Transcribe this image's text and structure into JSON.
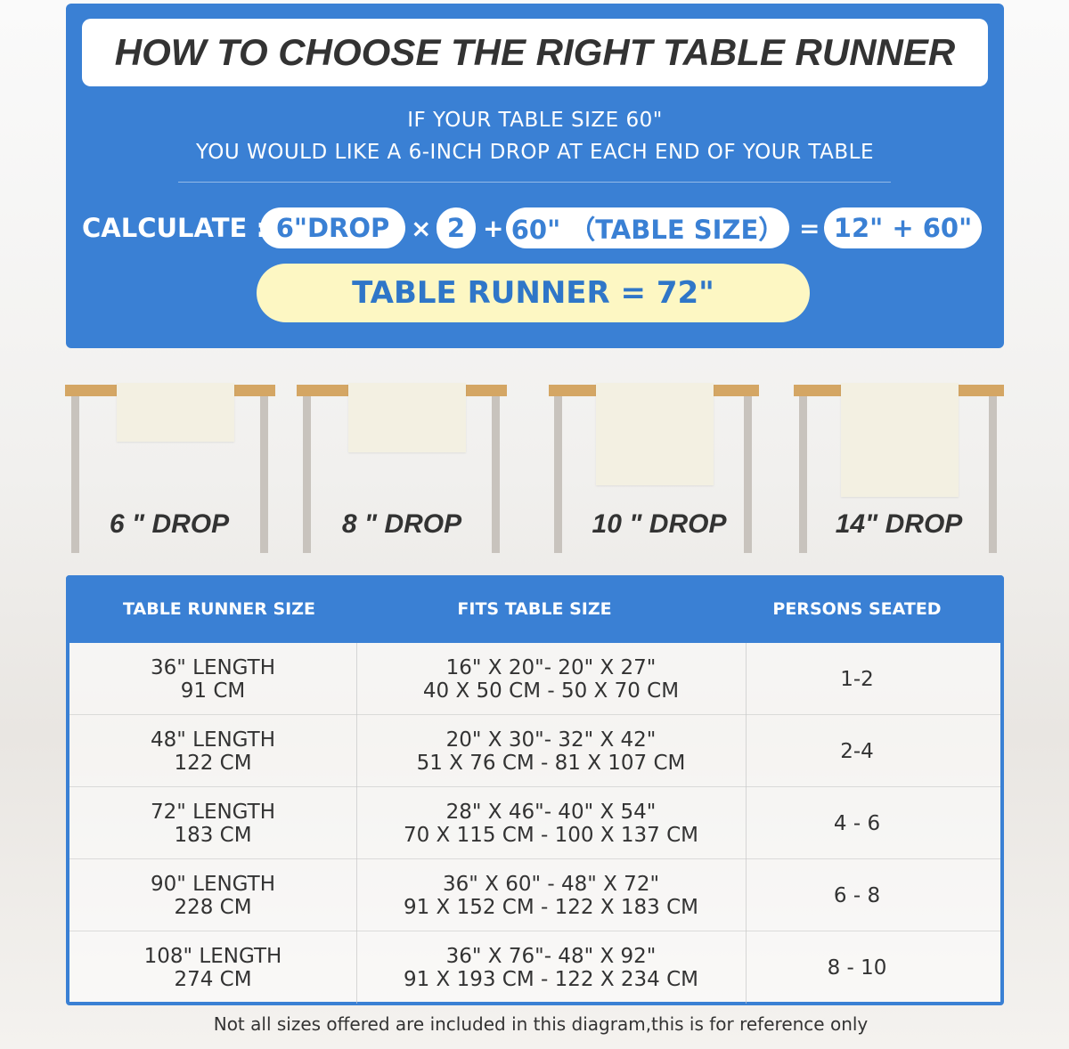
{
  "title": "HOW TO CHOOSE THE RIGHT TABLE RUNNER",
  "intro": [
    "IF YOUR TABLE SIZE 60\"",
    "YOU WOULD LIKE A 6-INCH DROP AT EACH END OF YOUR TABLE"
  ],
  "calc": {
    "label": "CALCULATE :",
    "drop": "6\"DROP",
    "times": "×",
    "factor": "2",
    "plus": "+",
    "table": "60\" （TABLE SIZE）",
    "equals": "=",
    "sum": "12\" + 60\""
  },
  "result": "TABLE RUNNER = 72\"",
  "drops": [
    "6 \" DROP",
    "8 \" DROP",
    "10 \" DROP",
    "14\" DROP"
  ],
  "colors": {
    "primary": "#3a80d4",
    "highlight": "#fdf7c3",
    "tabletop": "#d4a664"
  },
  "table": {
    "headers": [
      "TABLE RUNNER SIZE",
      "FITS TABLE SIZE",
      "PERSONS SEATED"
    ],
    "rows": [
      {
        "size": [
          "36\" LENGTH",
          "91 CM"
        ],
        "fits": [
          "16\" X 20\"- 20\" X 27\"",
          "40 X 50 CM - 50 X 70 CM"
        ],
        "persons": "1-2"
      },
      {
        "size": [
          "48\" LENGTH",
          "122 CM"
        ],
        "fits": [
          "20\" X 30\"- 32\" X 42\"",
          "51 X 76 CM - 81 X 107 CM"
        ],
        "persons": "2-4"
      },
      {
        "size": [
          "72\" LENGTH",
          "183 CM"
        ],
        "fits": [
          "28\" X 46\"- 40\" X 54\"",
          "70 X 115 CM - 100 X 137 CM"
        ],
        "persons": "4 - 6"
      },
      {
        "size": [
          "90\" LENGTH",
          "228 CM"
        ],
        "fits": [
          "36\" X 60\" - 48\" X 72\"",
          "91 X 152 CM - 122 X 183 CM"
        ],
        "persons": "6 - 8"
      },
      {
        "size": [
          "108\" LENGTH",
          "274 CM"
        ],
        "fits": [
          "36\" X 76\"- 48\" X 92\"",
          "91 X 193 CM - 122 X 234 CM"
        ],
        "persons": "8 - 10"
      }
    ]
  },
  "footer": "Not all sizes offered are included in this diagram,this is for reference only"
}
